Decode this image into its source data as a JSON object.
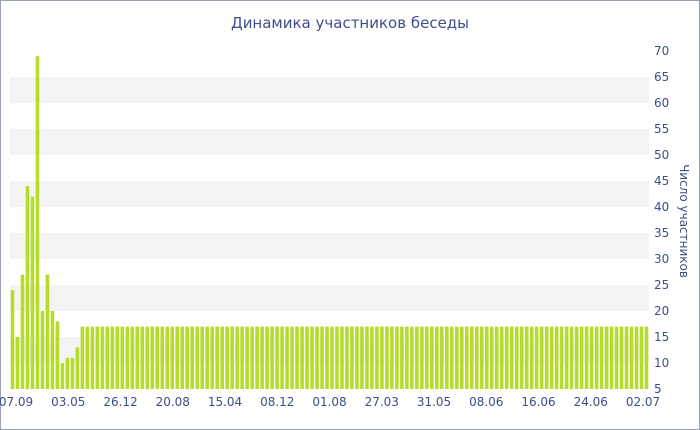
{
  "chart_data": {
    "type": "bar",
    "title": "Динамика участников беседы",
    "xlabel": "",
    "ylabel": "Число участников",
    "ylim": [
      5,
      70
    ],
    "y_ticks": [
      5,
      10,
      15,
      20,
      25,
      30,
      35,
      40,
      45,
      50,
      55,
      60,
      65,
      70
    ],
    "x_tick_labels": [
      "07.09",
      "03.05",
      "26.12",
      "20.08",
      "15.04",
      "08.12",
      "01.08",
      "27.03",
      "31.05",
      "08.06",
      "16.06",
      "24.06",
      "02.07"
    ],
    "grid": "horizontal bands",
    "legend": "none",
    "colors": {
      "bar": "#b5dc2c",
      "band": "#f4f4f4",
      "text": "#3c4f8a"
    },
    "values": [
      24,
      15,
      27,
      44,
      42,
      69,
      20,
      27,
      20,
      18,
      10,
      11,
      11,
      13,
      17,
      17,
      17,
      17,
      17,
      17,
      17,
      17,
      17,
      17,
      17,
      17,
      17,
      17,
      17,
      17,
      17,
      17,
      17,
      17,
      17,
      17,
      17,
      17,
      17,
      17,
      17,
      17,
      17,
      17,
      17,
      17,
      17,
      17,
      17,
      17,
      17,
      17,
      17,
      17,
      17,
      17,
      17,
      17,
      17,
      17,
      17,
      17,
      17,
      17,
      17,
      17,
      17,
      17,
      17,
      17,
      17,
      17,
      17,
      17,
      17,
      17,
      17,
      17,
      17,
      17,
      17,
      17,
      17,
      17,
      17,
      17,
      17,
      17,
      17,
      17,
      17,
      17,
      17,
      17,
      17,
      17,
      17,
      17,
      17,
      17,
      17,
      17,
      17,
      17,
      17,
      17,
      17,
      17,
      17,
      17,
      17,
      17,
      17,
      17,
      17,
      17,
      17,
      17,
      17,
      17,
      17,
      17,
      17,
      17,
      17,
      17,
      17,
      17
    ]
  }
}
